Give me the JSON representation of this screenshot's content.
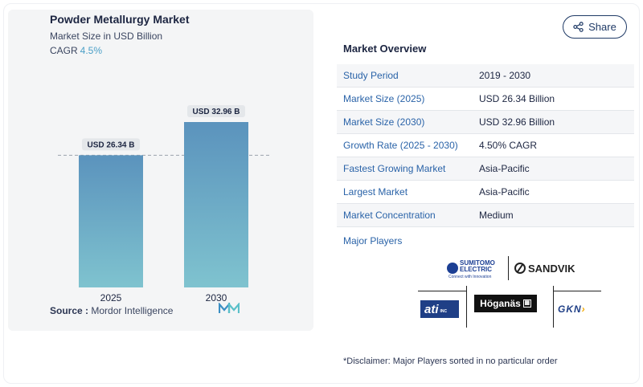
{
  "chart_panel": {
    "title": "Powder Metallurgy Market",
    "subtitle": "Market Size in USD Billion",
    "cagr_label": "CAGR",
    "cagr_value": "4.5%",
    "source_label": "Source :",
    "source_value": "Mordor Intelligence"
  },
  "chart_data": {
    "type": "bar",
    "title": "Powder Metallurgy Market",
    "categories": [
      "2025",
      "2030"
    ],
    "values": [
      26.34,
      32.96
    ],
    "value_labels": [
      "USD 26.34 B",
      "USD 32.96 B"
    ],
    "xlabel": "",
    "ylabel": "",
    "ylim": [
      0,
      40
    ],
    "grid": false,
    "reference_line_value": 26.34,
    "bar_color_top": "#5b93bd",
    "bar_color_bottom": "#7fc3cf"
  },
  "share_label": "Share",
  "overview": {
    "title": "Market Overview",
    "rows": [
      {
        "key": "Study Period",
        "value": "2019 - 2030"
      },
      {
        "key": "Market Size (2025)",
        "value": "USD 26.34 Billion"
      },
      {
        "key": "Market Size (2030)",
        "value": "USD 32.96 Billion"
      },
      {
        "key": "Growth Rate (2025 - 2030)",
        "value": "4.50% CAGR"
      },
      {
        "key": "Fastest Growing Market",
        "value": "Asia-Pacific"
      },
      {
        "key": "Largest Market",
        "value": "Asia-Pacific"
      },
      {
        "key": "Market Concentration",
        "value": "Medium"
      }
    ]
  },
  "players": {
    "title": "Major Players",
    "logos": {
      "sumitomo_top": "SUMITOMO",
      "sumitomo_bottom": "ELECTRIC",
      "sumitomo_tagline": "Connect with Innovation",
      "sandvik": "SANDVIK",
      "ati": "ati",
      "ati_suffix": "INC",
      "hoganas": "Höganäs",
      "gkn": "GKN"
    }
  },
  "disclaimer": "*Disclaimer: Major Players sorted in no particular order"
}
